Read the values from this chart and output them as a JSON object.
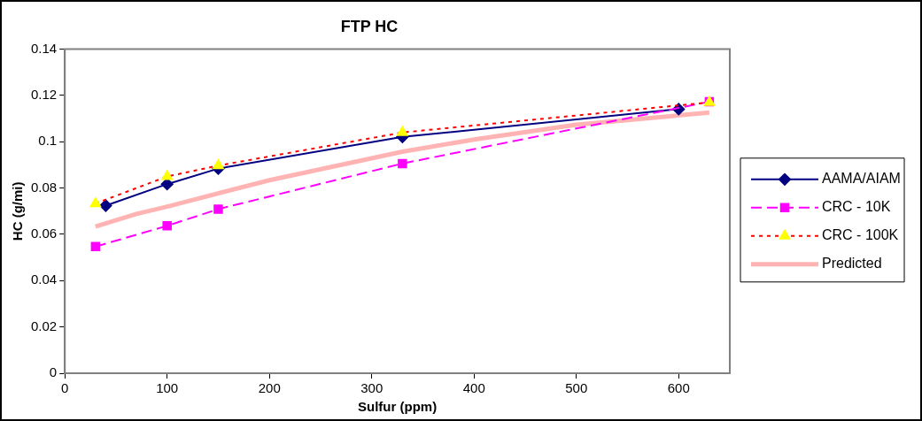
{
  "chart_data": {
    "type": "line",
    "title": "FTP HC",
    "xlabel": "Sulfur (ppm)",
    "ylabel": "HC (g/mi)",
    "xlim": [
      0,
      650
    ],
    "xticks": [
      0,
      100,
      200,
      300,
      400,
      500,
      600
    ],
    "ylim": [
      0,
      0.14
    ],
    "yticks": [
      0,
      0.02,
      0.04,
      0.06,
      0.08,
      0.1,
      0.12,
      0.14
    ],
    "grid": false,
    "legend": "right",
    "series": [
      {
        "name": "AAMA/AIAM",
        "color": "#000080",
        "marker": "diamond",
        "line_style": "solid",
        "x": [
          40,
          100,
          150,
          330,
          600
        ],
        "values": [
          0.0724,
          0.0817,
          0.0884,
          0.1021,
          0.1141
        ]
      },
      {
        "name": "CRC - 10K",
        "color": "#ff00ff",
        "marker": "square",
        "line_style": "dashed",
        "x": [
          30,
          100,
          150,
          330,
          630
        ],
        "values": [
          0.0547,
          0.0637,
          0.0709,
          0.0906,
          0.1173
        ]
      },
      {
        "name": "CRC - 100K",
        "color": "#ff0000",
        "marker": "triangle",
        "line_style": "dotted",
        "x": [
          30,
          100,
          150,
          330,
          630
        ],
        "values": [
          0.0733,
          0.085,
          0.0897,
          0.104,
          0.117
        ]
      },
      {
        "name": "Predicted",
        "color": "#ffb3b3",
        "marker": "none",
        "line_style": "solid",
        "x": [
          30,
          70,
          100,
          200,
          330,
          400,
          500,
          630
        ],
        "values": [
          0.0634,
          0.0688,
          0.072,
          0.0834,
          0.0957,
          0.101,
          0.1074,
          0.1126
        ]
      }
    ]
  }
}
